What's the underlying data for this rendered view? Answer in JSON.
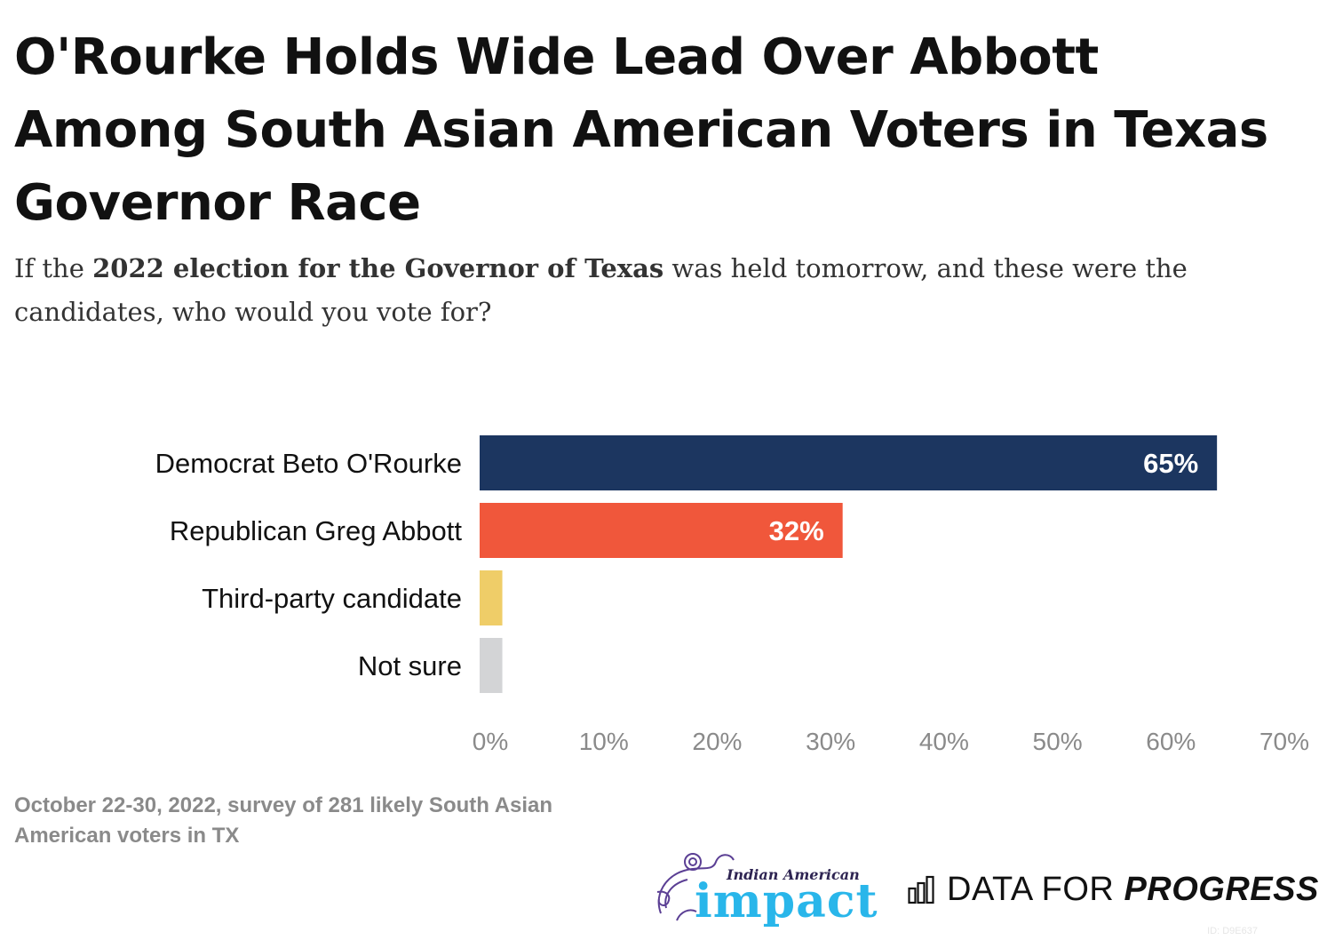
{
  "header": {
    "title": "O'Rourke Holds Wide Lead Over Abbott Among South Asian American Voters in Texas Governor Race",
    "subtitle_pre": "If the ",
    "subtitle_bold": "2022 election for the Governor of Texas",
    "subtitle_post": " was held tomorrow, and these were the candidates, who would you vote for?"
  },
  "chart_data": {
    "type": "bar",
    "orientation": "horizontal",
    "categories": [
      "Democrat Beto O'Rourke",
      "Republican Greg Abbott",
      "Third-party candidate",
      "Not sure"
    ],
    "values": [
      65,
      32,
      2,
      2
    ],
    "value_labels": [
      "65%",
      "32%",
      "",
      ""
    ],
    "colors": [
      "#1c3660",
      "#f0573b",
      "#efcd68",
      "#d3d4d6"
    ],
    "xlim": [
      0,
      70
    ],
    "xticks": [
      0,
      10,
      20,
      30,
      40,
      50,
      60,
      70
    ],
    "xtick_labels": [
      "0%",
      "10%",
      "20%",
      "30%",
      "40%",
      "50%",
      "60%",
      "70%"
    ],
    "grid": false,
    "legend": "none"
  },
  "footer": {
    "note": "October 22-30, 2022, survey of 281 likely South Asian American voters in TX",
    "logo_left_small": "Indian American",
    "logo_left_big": "impact",
    "logo_right_regular": "DATA FOR ",
    "logo_right_bold": "PROGRESS",
    "chart_id": "ID: D9E637"
  }
}
